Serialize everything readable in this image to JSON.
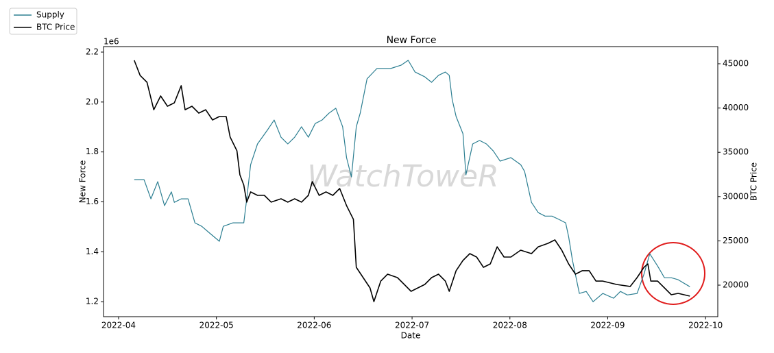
{
  "chart_data": {
    "type": "line",
    "title": "New Force",
    "x_label": "Date",
    "y_label": "New Force",
    "y2_label": "BTC Price",
    "y_offset_label": "1e6",
    "watermark": "WatchToweR",
    "legend": "upper left",
    "grid": false,
    "xlim": [
      3.846,
      10.125
    ],
    "xticks": [
      {
        "value": 4,
        "label": "2022-04"
      },
      {
        "value": 5,
        "label": "2022-05"
      },
      {
        "value": 6,
        "label": "2022-06"
      },
      {
        "value": 7,
        "label": "2022-07"
      },
      {
        "value": 8,
        "label": "2022-08"
      },
      {
        "value": 9,
        "label": "2022-09"
      },
      {
        "value": 10,
        "label": "2022-10"
      }
    ],
    "ylim": [
      1.14,
      2.222
    ],
    "yticks": [
      1.2,
      1.4,
      1.6,
      1.8,
      {
        "value": 2,
        "label": "2.0"
      },
      2.2
    ],
    "y2lim": [
      16440,
      46935
    ],
    "y2ticks": [
      20000,
      25000,
      30000,
      35000,
      40000,
      45000
    ],
    "series": [
      {
        "name": "Supply",
        "color": "#2b7e91",
        "axis": "y",
        "x": [
          4.16,
          4.26,
          4.33,
          4.4,
          4.47,
          4.54,
          4.57,
          4.64,
          4.71,
          4.78,
          4.85,
          4.93,
          5.03,
          5.07,
          5.17,
          5.28,
          5.31,
          5.35,
          5.42,
          5.52,
          5.59,
          5.66,
          5.73,
          5.8,
          5.87,
          5.94,
          6.01,
          6.08,
          6.15,
          6.22,
          6.29,
          6.33,
          6.38,
          6.43,
          6.47,
          6.54,
          6.64,
          6.78,
          6.89,
          6.96,
          7.03,
          7.13,
          7.2,
          7.27,
          7.34,
          7.38,
          7.41,
          7.45,
          7.52,
          7.55,
          7.62,
          7.69,
          7.76,
          7.83,
          7.9,
          8.01,
          8.11,
          8.15,
          8.22,
          8.29,
          8.36,
          8.43,
          8.5,
          8.57,
          8.6,
          8.64,
          8.71,
          8.78,
          8.85,
          8.95,
          9.06,
          9.13,
          9.2,
          9.3,
          9.37,
          9.43,
          9.51,
          9.58,
          9.65,
          9.72,
          9.84
        ],
        "values": [
          1.689,
          1.689,
          1.612,
          1.681,
          1.585,
          1.64,
          1.598,
          1.612,
          1.612,
          1.516,
          1.502,
          1.475,
          1.442,
          1.502,
          1.516,
          1.516,
          1.612,
          1.749,
          1.832,
          1.887,
          1.928,
          1.859,
          1.832,
          1.859,
          1.901,
          1.859,
          1.914,
          1.928,
          1.955,
          1.975,
          1.901,
          1.777,
          1.7,
          1.901,
          1.955,
          2.093,
          2.134,
          2.134,
          2.148,
          2.167,
          2.12,
          2.101,
          2.079,
          2.107,
          2.12,
          2.107,
          2.01,
          1.942,
          1.873,
          1.708,
          1.832,
          1.846,
          1.832,
          1.804,
          1.763,
          1.777,
          1.749,
          1.722,
          1.598,
          1.557,
          1.543,
          1.543,
          1.53,
          1.516,
          1.461,
          1.365,
          1.233,
          1.241,
          1.2,
          1.233,
          1.214,
          1.241,
          1.227,
          1.233,
          1.31,
          1.392,
          1.343,
          1.296,
          1.296,
          1.288,
          1.26
        ]
      },
      {
        "name": "BTC Price",
        "color": "#000000",
        "axis": "y2",
        "x": [
          4.16,
          4.22,
          4.29,
          4.36,
          4.43,
          4.5,
          4.57,
          4.64,
          4.68,
          4.75,
          4.82,
          4.89,
          4.96,
          5.03,
          5.1,
          5.14,
          5.21,
          5.24,
          5.28,
          5.31,
          5.35,
          5.42,
          5.49,
          5.56,
          5.66,
          5.73,
          5.8,
          5.87,
          5.94,
          5.98,
          6.05,
          6.12,
          6.19,
          6.26,
          6.33,
          6.4,
          6.43,
          6.5,
          6.57,
          6.61,
          6.68,
          6.75,
          6.85,
          6.92,
          6.99,
          7.06,
          7.13,
          7.2,
          7.27,
          7.34,
          7.38,
          7.45,
          7.52,
          7.59,
          7.66,
          7.73,
          7.8,
          7.87,
          7.94,
          8.01,
          8.11,
          8.22,
          8.29,
          8.39,
          8.46,
          8.53,
          8.6,
          8.67,
          8.74,
          8.81,
          8.88,
          8.95,
          9.09,
          9.23,
          9.3,
          9.37,
          9.41,
          9.44,
          9.51,
          9.58,
          9.65,
          9.72,
          9.84
        ],
        "values": [
          45390,
          43680,
          42910,
          39810,
          41360,
          40200,
          40590,
          42520,
          39810,
          40200,
          39430,
          39810,
          38650,
          39040,
          39040,
          36720,
          35170,
          32460,
          31300,
          29370,
          30530,
          30140,
          30140,
          29370,
          29750,
          29370,
          29750,
          29370,
          30140,
          31690,
          30140,
          30530,
          30140,
          30910,
          28980,
          27430,
          22010,
          20850,
          19690,
          18140,
          20460,
          21240,
          20850,
          20080,
          19300,
          19690,
          20080,
          20850,
          21240,
          20460,
          19300,
          21630,
          22790,
          23560,
          23170,
          22010,
          22400,
          24330,
          23170,
          23170,
          23950,
          23560,
          24330,
          24720,
          25110,
          23950,
          22400,
          21240,
          21630,
          21630,
          20460,
          20460,
          20080,
          19850,
          20850,
          22010,
          22400,
          20460,
          20460,
          19690,
          18920,
          19070,
          18760
        ]
      }
    ]
  }
}
